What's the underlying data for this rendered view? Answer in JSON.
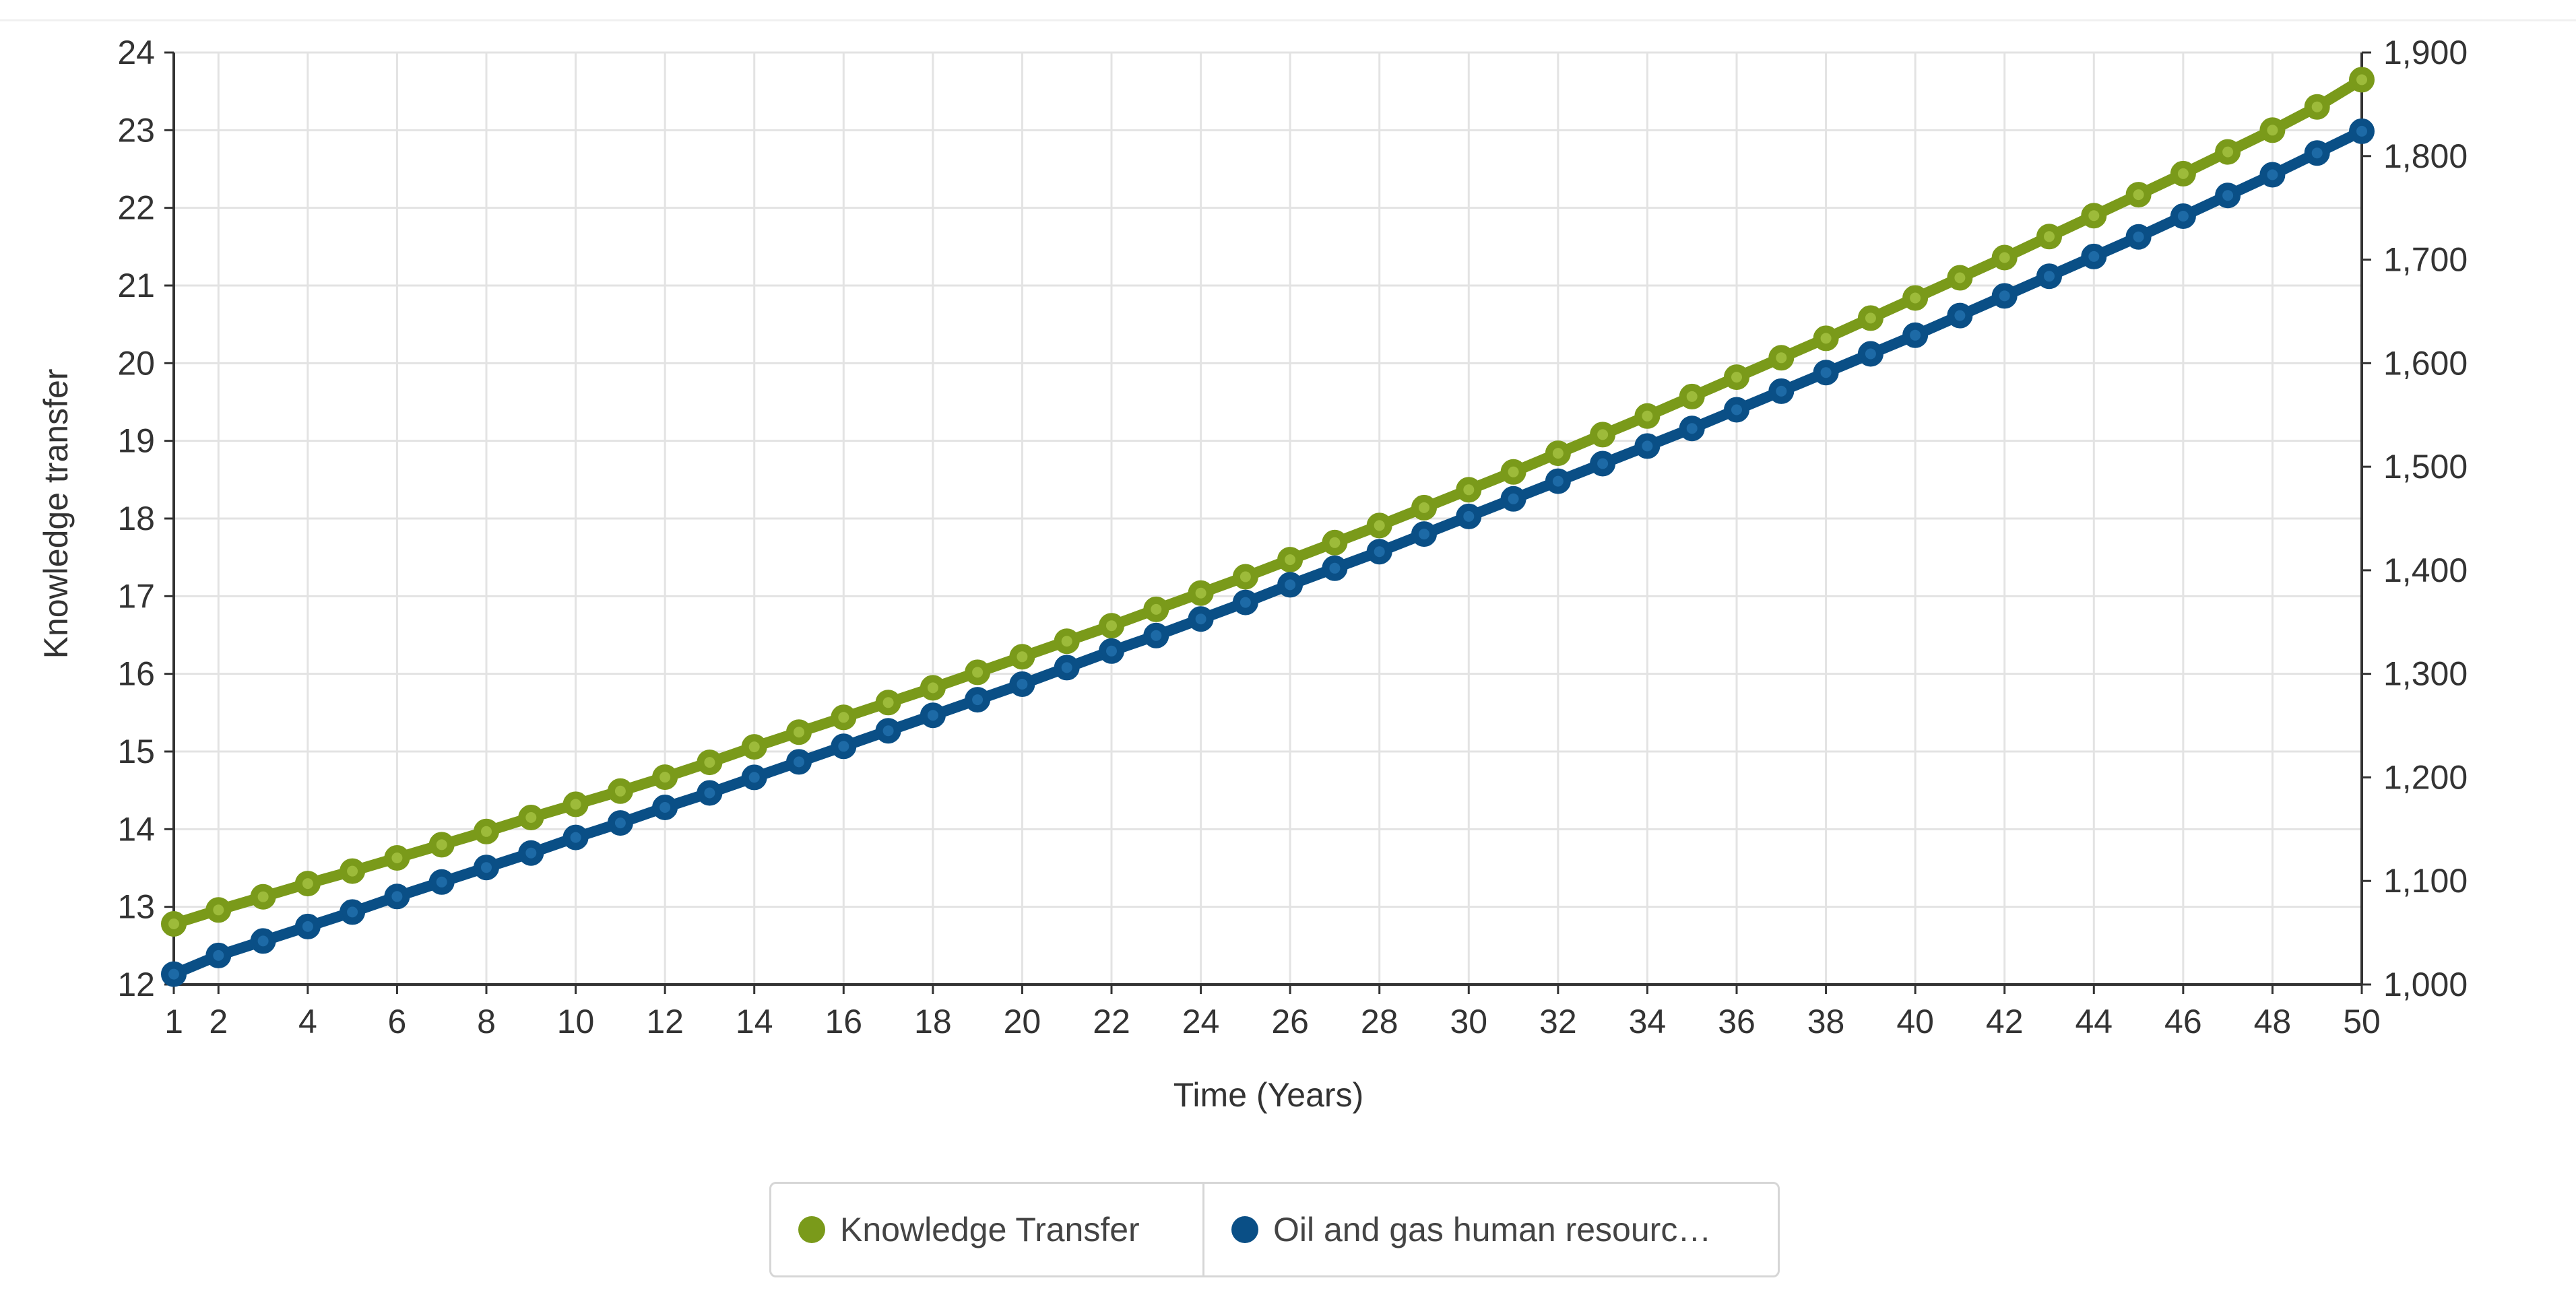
{
  "chart_data": {
    "type": "line",
    "xlabel": "Time (Years)",
    "ylabel_left": "Knowledge transfer",
    "ylabel_right": "",
    "x": [
      1,
      2,
      3,
      4,
      5,
      6,
      7,
      8,
      9,
      10,
      11,
      12,
      13,
      14,
      15,
      16,
      17,
      18,
      19,
      20,
      21,
      22,
      23,
      24,
      25,
      26,
      27,
      28,
      29,
      30,
      31,
      32,
      33,
      34,
      35,
      36,
      37,
      38,
      39,
      40,
      41,
      42,
      43,
      44,
      45,
      46,
      47,
      48,
      49,
      50
    ],
    "x_tick_labels": [
      "1",
      "2",
      "4",
      "6",
      "8",
      "10",
      "12",
      "14",
      "16",
      "18",
      "20",
      "22",
      "24",
      "26",
      "28",
      "30",
      "32",
      "34",
      "36",
      "38",
      "40",
      "42",
      "44",
      "46",
      "48",
      "50"
    ],
    "ylim_left": [
      12,
      24
    ],
    "ylim_right": [
      1000,
      1900
    ],
    "y_left_tick_labels": [
      "12",
      "13",
      "14",
      "15",
      "16",
      "17",
      "18",
      "19",
      "20",
      "21",
      "22",
      "23",
      "24"
    ],
    "y_right_tick_labels": [
      "1,000",
      "1,100",
      "1,200",
      "1,300",
      "1,400",
      "1,500",
      "1,600",
      "1,700",
      "1,800",
      "1,900"
    ],
    "grid": true,
    "legend_position": "bottom-center",
    "series": [
      {
        "name": "Knowledge Transfer",
        "axis": "left",
        "color": "#7a9a1a",
        "values": [
          12.78,
          12.96,
          13.13,
          13.3,
          13.46,
          13.63,
          13.8,
          13.97,
          14.15,
          14.32,
          14.49,
          14.67,
          14.86,
          15.06,
          15.25,
          15.44,
          15.63,
          15.82,
          16.02,
          16.22,
          16.42,
          16.62,
          16.83,
          17.04,
          17.25,
          17.47,
          17.69,
          17.91,
          18.14,
          18.37,
          18.6,
          18.84,
          19.08,
          19.32,
          19.57,
          19.82,
          20.07,
          20.32,
          20.58,
          20.84,
          21.1,
          21.36,
          21.63,
          21.9,
          22.17,
          22.44,
          22.72,
          23.0,
          23.3,
          23.65
        ]
      },
      {
        "name": "Oil and gas human resourc…",
        "axis": "right",
        "color": "#0a4f86",
        "values": [
          1010,
          1028,
          1042,
          1056,
          1070,
          1085,
          1099,
          1113,
          1127,
          1142,
          1156,
          1171,
          1185,
          1200,
          1215,
          1230,
          1245,
          1260,
          1275,
          1290,
          1306,
          1322,
          1337,
          1353,
          1369,
          1386,
          1402,
          1418,
          1435,
          1452,
          1469,
          1486,
          1503,
          1520,
          1537,
          1555,
          1573,
          1591,
          1609,
          1627,
          1646,
          1665,
          1684,
          1703,
          1722,
          1742,
          1762,
          1782,
          1803,
          1824
        ]
      }
    ]
  }
}
